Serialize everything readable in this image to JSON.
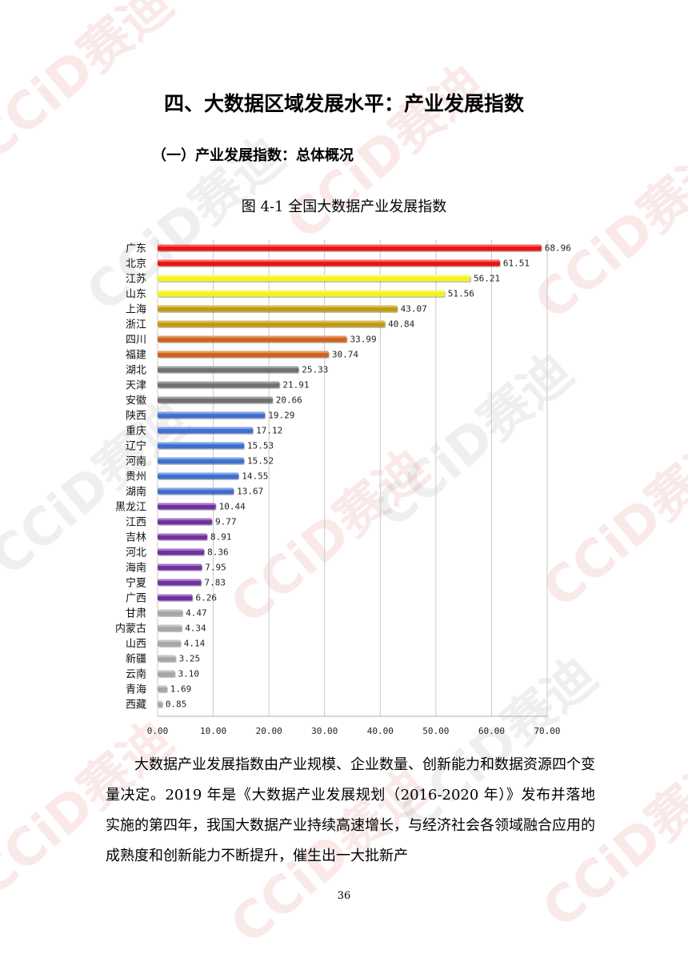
{
  "watermark": "CCiD赛迪",
  "heading": "四、大数据区域发展水平：产业发展指数",
  "subheading": "（一）产业发展指数：总体概况",
  "figure_caption": "图 4-1  全国大数据产业发展指数",
  "chart_data": {
    "type": "bar",
    "orientation": "horizontal",
    "title": "",
    "xlabel": "",
    "ylabel": "",
    "xlim": [
      0,
      70
    ],
    "xticks": [
      "0.00",
      "10.00",
      "20.00",
      "30.00",
      "40.00",
      "50.00",
      "60.00",
      "70.00"
    ],
    "grid": true,
    "categories": [
      "广东",
      "北京",
      "江苏",
      "山东",
      "上海",
      "浙江",
      "四川",
      "福建",
      "湖北",
      "天津",
      "安徽",
      "陕西",
      "重庆",
      "辽宁",
      "河南",
      "贵州",
      "湖南",
      "黑龙江",
      "江西",
      "吉林",
      "河北",
      "海南",
      "宁夏",
      "广西",
      "甘肃",
      "内蒙古",
      "山西",
      "新疆",
      "云南",
      "青海",
      "西藏"
    ],
    "values": [
      68.96,
      61.51,
      56.21,
      51.56,
      43.07,
      40.84,
      33.99,
      30.74,
      25.33,
      21.91,
      20.66,
      19.29,
      17.12,
      15.53,
      15.52,
      14.55,
      13.67,
      10.44,
      9.77,
      8.91,
      8.36,
      7.95,
      7.83,
      6.26,
      4.47,
      4.34,
      4.14,
      3.25,
      3.1,
      1.69,
      0.85
    ],
    "labels": [
      "68.96",
      "61.51",
      "56.21",
      "51.56",
      "43.07",
      "40.84",
      "33.99",
      "30.74",
      "25.33",
      "21.91",
      "20.66",
      "19.29",
      "17.12",
      "15.53",
      "15.52",
      "14.55",
      "13.67",
      "10.44",
      "9.77",
      "8.91",
      "8.36",
      "7.95",
      "7.83",
      "6.26",
      "4.47",
      "4.34",
      "4.14",
      "3.25",
      "3.10",
      "1.69",
      "0.85"
    ],
    "colors": [
      "#ee1111",
      "#ee1111",
      "#f4f41c",
      "#f4f41c",
      "#c19a0e",
      "#c19a0e",
      "#d0621a",
      "#d0621a",
      "#707070",
      "#707070",
      "#707070",
      "#3d6fd0",
      "#3d6fd0",
      "#3d6fd0",
      "#3d6fd0",
      "#3d6fd0",
      "#3d6fd0",
      "#7030a0",
      "#7030a0",
      "#7030a0",
      "#7030a0",
      "#7030a0",
      "#7030a0",
      "#7030a0",
      "#a6a6a6",
      "#a6a6a6",
      "#a6a6a6",
      "#a6a6a6",
      "#a6a6a6",
      "#a6a6a6",
      "#a6a6a6"
    ]
  },
  "paragraph": "大数据产业发展指数由产业规模、企业数量、创新能力和数据资源四个变量决定。2019 年是《大数据产业发展规划（2016-2020 年）》发布并落地实施的第四年，我国大数据产业持续高速增长，与经济社会各领域融合应用的成熟度和创新能力不断提升，催生出一大批新产",
  "page_number": "36"
}
